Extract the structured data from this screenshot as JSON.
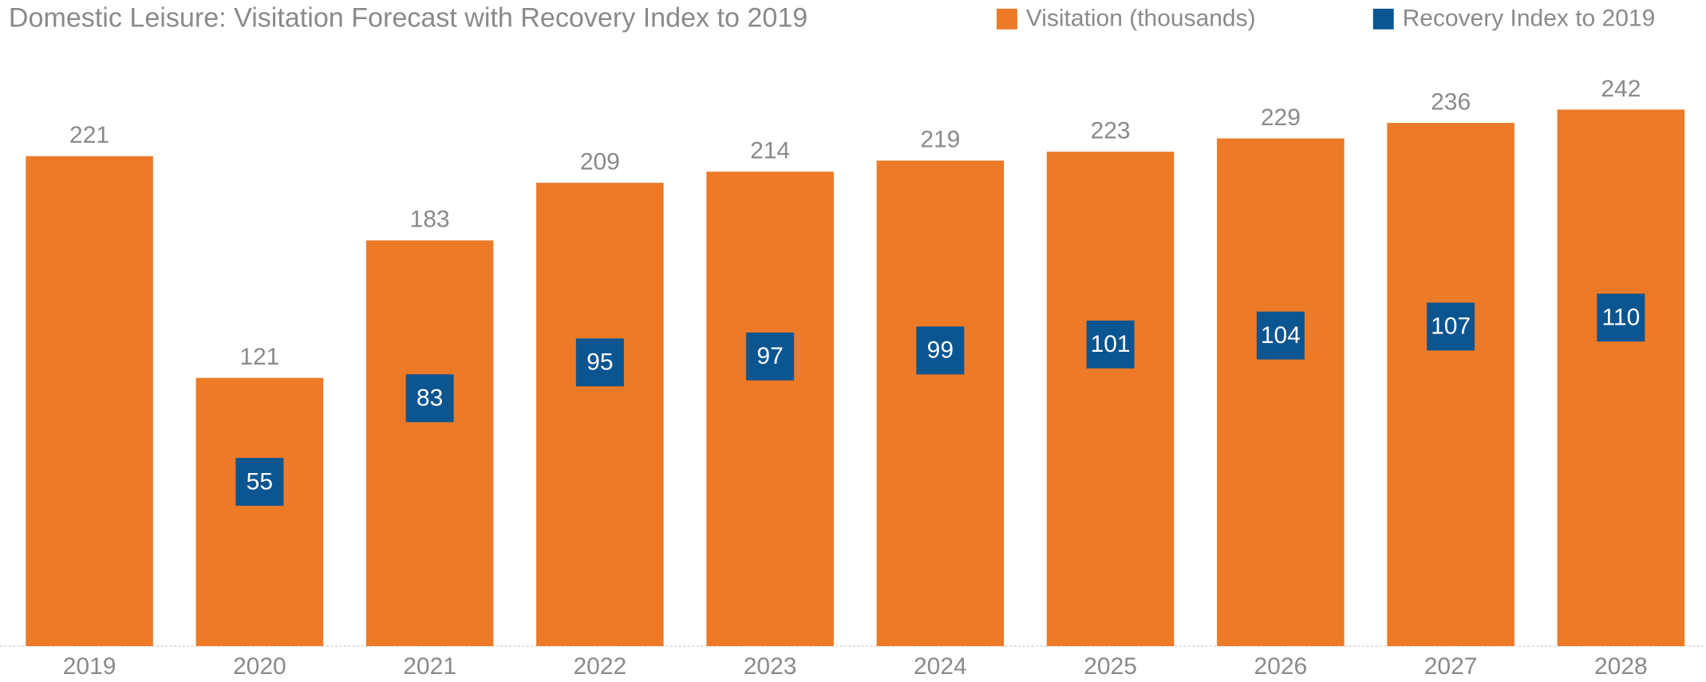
{
  "chart_data": {
    "type": "bar",
    "title": "Domestic Leisure: Visitation Forecast with Recovery Index to 2019",
    "categories": [
      "2019",
      "2020",
      "2021",
      "2022",
      "2023",
      "2024",
      "2025",
      "2026",
      "2027",
      "2028"
    ],
    "series": [
      {
        "name": "Visitation (thousands)",
        "color": "#ec7a27",
        "values": [
          221,
          121,
          183,
          209,
          214,
          219,
          223,
          229,
          236,
          242
        ]
      },
      {
        "name": "Recovery Index to 2019",
        "color": "#0b5591",
        "axis": "y2",
        "values": [
          null,
          55,
          83,
          95,
          97,
          99,
          101,
          104,
          107,
          110
        ]
      }
    ],
    "ylim": [
      0,
      262
    ],
    "y2lim": [
      0,
      194.5
    ],
    "legend": "top-right"
  }
}
